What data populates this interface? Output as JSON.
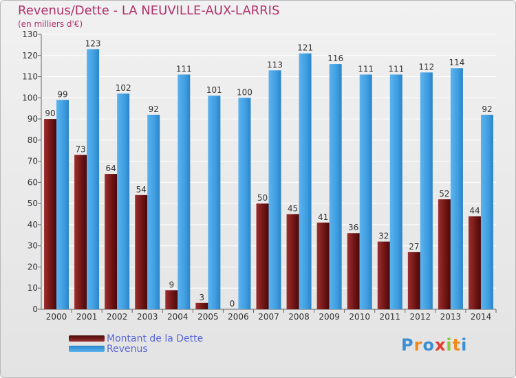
{
  "title": "Revenus/Dette - LA NEUVILLE-AUX-LARRIS",
  "subtitle": "(en milliers d'€)",
  "logo": {
    "letters": [
      "P",
      "r",
      "o",
      "x",
      "i",
      "t",
      "i"
    ],
    "colors": [
      "#3a8fd4",
      "#f08a1c",
      "#3a8fd4",
      "#e23a2e",
      "#8cc63f",
      "#f08a1c",
      "#3a8fd4"
    ]
  },
  "chart_data": {
    "type": "bar",
    "categories": [
      "2000",
      "2001",
      "2002",
      "2003",
      "2004",
      "2005",
      "2006",
      "2007",
      "2008",
      "2009",
      "2010",
      "2011",
      "2012",
      "2013",
      "2014"
    ],
    "series": [
      {
        "name": "Montant de la Dette",
        "color": "#7a1a1a",
        "values": [
          90,
          73,
          64,
          54,
          9,
          3,
          0,
          50,
          45,
          41,
          36,
          32,
          27,
          52,
          44
        ]
      },
      {
        "name": "Revenus",
        "color": "#3a9be0",
        "values": [
          99,
          123,
          102,
          92,
          111,
          101,
          100,
          113,
          121,
          116,
          111,
          111,
          112,
          114,
          92
        ]
      }
    ],
    "ylim": [
      0,
      130
    ],
    "yticks": [
      0,
      10,
      20,
      30,
      40,
      50,
      60,
      70,
      80,
      90,
      100,
      110,
      120,
      130
    ],
    "grid": true,
    "legend": "bottom-left"
  }
}
